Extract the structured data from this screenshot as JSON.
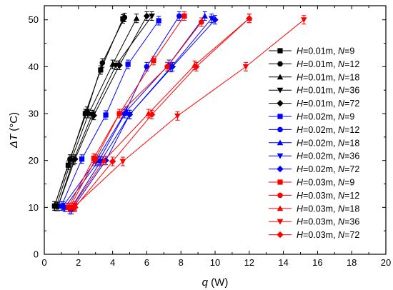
{
  "chart_data": {
    "type": "line",
    "xlabel": {
      "var": "q",
      "unit": " (W)"
    },
    "ylabel": {
      "var": "ΔT",
      "unit": " (°C)"
    },
    "xlim": [
      0,
      20
    ],
    "ylim": [
      0,
      53
    ],
    "xticks": [
      "0",
      "2",
      "4",
      "6",
      "8",
      "10",
      "12",
      "14",
      "16",
      "18",
      "20"
    ],
    "yticks": [
      "0",
      "10",
      "20",
      "30",
      "40",
      "50"
    ],
    "legend_position": "right",
    "grid": false,
    "series": [
      {
        "name": "H=0.01m, N=9",
        "h": "0.01m",
        "n": "9",
        "color": "#000000",
        "marker": "square",
        "x": [
          0.6,
          1.4,
          2.4,
          3.3,
          4.6
        ],
        "y": [
          10.3,
          19.0,
          30.0,
          39.3,
          50.2
        ]
      },
      {
        "name": "H=0.01m, N=12",
        "h": "0.01m",
        "n": "12",
        "color": "#000000",
        "marker": "circle",
        "x": [
          0.6,
          1.5,
          2.5,
          3.4,
          4.7
        ],
        "y": [
          10.3,
          20.3,
          30.5,
          40.8,
          50.5
        ]
      },
      {
        "name": "H=0.01m, N=18",
        "h": "0.01m",
        "n": "18",
        "color": "#000000",
        "marker": "triangle-up",
        "x": [
          0.7,
          1.6,
          2.6,
          4.0,
          5.4
        ],
        "y": [
          10.2,
          20.3,
          30.0,
          40.5,
          50.3
        ]
      },
      {
        "name": "H=0.01m, N=36",
        "h": "0.01m",
        "n": "36",
        "color": "#000000",
        "marker": "triangle-down",
        "x": [
          0.8,
          1.7,
          2.8,
          4.2,
          6.3
        ],
        "y": [
          10.2,
          20.0,
          29.8,
          40.3,
          50.8
        ]
      },
      {
        "name": "H=0.01m, N=72",
        "h": "0.01m",
        "n": "72",
        "color": "#000000",
        "marker": "diamond",
        "x": [
          0.8,
          1.8,
          2.9,
          4.4,
          6.0
        ],
        "y": [
          10.2,
          20.3,
          29.6,
          40.3,
          50.8
        ]
      },
      {
        "name": "H=0.02m, N=9",
        "h": "0.02m",
        "n": "9",
        "color": "#0000ff",
        "marker": "square",
        "x": [
          1.0,
          2.2,
          3.6,
          4.9,
          6.7
        ],
        "y": [
          10.3,
          20.3,
          29.7,
          40.5,
          49.8
        ]
      },
      {
        "name": "H=0.02m, N=12",
        "h": "0.02m",
        "n": "12",
        "color": "#0000ff",
        "marker": "circle",
        "x": [
          1.1,
          3.0,
          4.7,
          6.0,
          7.9
        ],
        "y": [
          10.3,
          19.8,
          30.0,
          40.0,
          50.8
        ]
      },
      {
        "name": "H=0.02m, N=18",
        "h": "0.02m",
        "n": "18",
        "color": "#0000ff",
        "marker": "triangle-up",
        "x": [
          1.2,
          3.2,
          4.8,
          7.3,
          9.4
        ],
        "y": [
          10.0,
          20.0,
          30.5,
          40.5,
          50.8
        ]
      },
      {
        "name": "H=0.02m, N=36",
        "h": "0.02m",
        "n": "36",
        "color": "#0000ff",
        "marker": "triangle-down",
        "x": [
          1.5,
          3.3,
          5.0,
          7.4,
          9.8
        ],
        "y": [
          9.5,
          19.8,
          29.8,
          39.8,
          50.3
        ]
      },
      {
        "name": "H=0.02m, N=72",
        "h": "0.02m",
        "n": "72",
        "color": "#0000ff",
        "marker": "diamond",
        "x": [
          1.6,
          3.6,
          5.0,
          7.5,
          10.0
        ],
        "y": [
          9.5,
          20.0,
          29.8,
          40.0,
          50.0
        ]
      },
      {
        "name": "H=0.03m, N=9",
        "h": "0.03m",
        "n": "9",
        "color": "#ff0000",
        "marker": "square",
        "x": [
          1.4,
          2.9,
          4.4,
          6.4,
          8.2
        ],
        "y": [
          10.0,
          20.5,
          30.0,
          41.3,
          50.8
        ]
      },
      {
        "name": "H=0.03m, N=12",
        "h": "0.03m",
        "n": "12",
        "color": "#ff0000",
        "marker": "circle",
        "x": [
          1.5,
          3.0,
          4.4,
          7.2,
          9.2
        ],
        "y": [
          10.0,
          20.3,
          30.0,
          40.0,
          49.5
        ]
      },
      {
        "name": "H=0.03m, N=18",
        "h": "0.03m",
        "n": "18",
        "color": "#ff0000",
        "marker": "triangle-up",
        "x": [
          1.6,
          3.5,
          6.1,
          8.8,
          12.0
        ],
        "y": [
          10.0,
          20.0,
          30.0,
          40.3,
          50.3
        ]
      },
      {
        "name": "H=0.03m, N=36",
        "h": "0.03m",
        "n": "36",
        "color": "#ff0000",
        "marker": "triangle-down",
        "x": [
          1.8,
          4.6,
          7.8,
          11.8,
          15.2
        ],
        "y": [
          10.3,
          19.8,
          29.5,
          40.0,
          50.0
        ]
      },
      {
        "name": "H=0.03m, N=72",
        "h": "0.03m",
        "n": "72",
        "color": "#ff0000",
        "marker": "diamond",
        "x": [
          1.8,
          4.0,
          6.3,
          8.9,
          12.0
        ],
        "y": [
          10.0,
          19.8,
          29.8,
          40.0,
          50.3
        ]
      }
    ]
  }
}
